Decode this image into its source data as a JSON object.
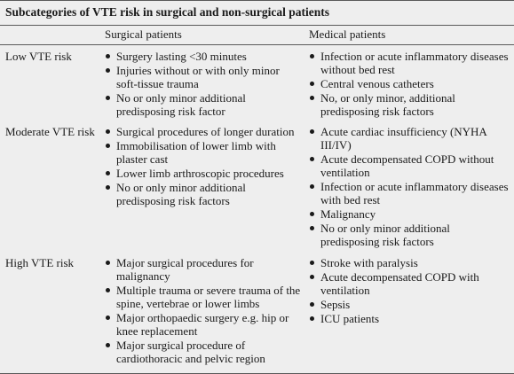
{
  "title": "Subcategories of VTE risk in surgical and non-surgical patients",
  "headers": {
    "surgical": "Surgical patients",
    "medical": "Medical patients"
  },
  "rows": [
    {
      "label": "Low VTE risk",
      "surgical": [
        "Surgery lasting <30 minutes",
        "Injuries without or with only minor soft-tissue trauma",
        "No or only minor additional predisposing risk factor"
      ],
      "medical": [
        "Infection or acute inflammatory diseases without bed rest",
        "Central venous catheters",
        "No, or only minor, additional predisposing risk factors"
      ]
    },
    {
      "label": "Moderate VTE risk",
      "surgical": [
        "Surgical procedures of longer duration",
        "Immobilisation of lower limb with plaster cast",
        "Lower limb arthroscopic procedures",
        "No or only minor additional predisposing risk factors"
      ],
      "medical": [
        "Acute cardiac insufficiency (NYHA III/IV)",
        "Acute decompensated COPD without ventilation",
        "Infection or acute inflammatory diseases with bed rest",
        "Malignancy",
        "No or only minor additional predisposing risk factors"
      ]
    },
    {
      "label": "High VTE risk",
      "surgical": [
        "Major surgical procedures for malignancy",
        "Multiple trauma or severe trauma of the spine, vertebrae or lower limbs",
        "Major orthopaedic surgery e.g. hip or knee replacement",
        "Major surgical procedure of cardiothoracic and pelvic region"
      ],
      "medical": [
        "Stroke with paralysis",
        "Acute decompensated COPD with ventilation",
        "Sepsis",
        "ICU patients"
      ]
    }
  ]
}
